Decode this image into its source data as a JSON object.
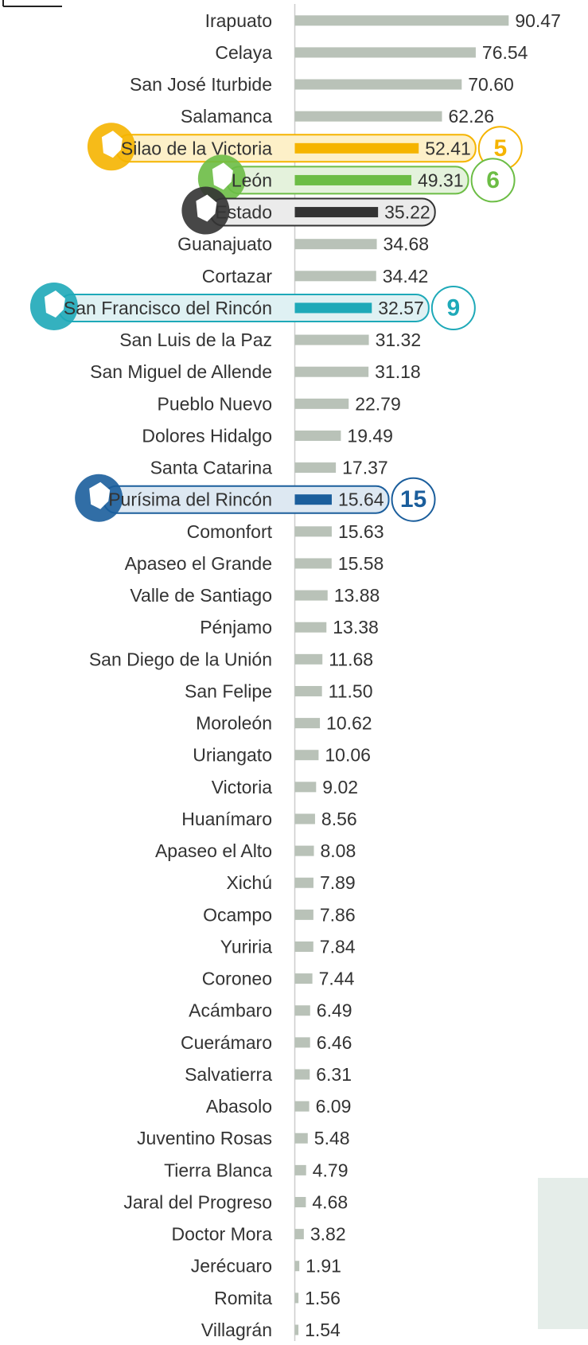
{
  "chart_data": {
    "type": "bar",
    "orientation": "horizontal",
    "color": "#b9c2b8",
    "categories": [
      "Irapuato",
      "Celaya",
      "San José Iturbide",
      "Salamanca",
      "Silao de la Victoria",
      "León",
      "Estado",
      "Guanajuato",
      "Cortazar",
      "San Francisco del Rincón",
      "San Luis de la Paz",
      "San Miguel de Allende",
      "Pueblo Nuevo",
      "Dolores Hidalgo",
      "Santa Catarina",
      "Purísima del Rincón",
      "Comonfort",
      "Apaseo el Grande",
      "Valle de Santiago",
      "Pénjamo",
      "San Diego de la Unión",
      "San Felipe",
      "Moroleón",
      "Uriangato",
      "Victoria",
      "Huanímaro",
      "Apaseo el Alto",
      "Xichú",
      "Ocampo",
      "Yuriria",
      "Coroneo",
      "Acámbaro",
      "Cuerámaro",
      "Salvatierra",
      "Abasolo",
      "Juventino Rosas",
      "Tierra Blanca",
      "Jaral del Progreso",
      "Doctor Mora",
      "Jerécuaro",
      "Romita",
      "Villagrán"
    ],
    "values": [
      90.47,
      76.54,
      70.6,
      62.26,
      52.41,
      49.31,
      35.22,
      34.68,
      34.42,
      32.57,
      31.32,
      31.18,
      22.79,
      19.49,
      17.37,
      15.64,
      15.63,
      15.58,
      13.88,
      13.38,
      11.68,
      11.5,
      10.62,
      10.06,
      9.02,
      8.56,
      8.08,
      7.89,
      7.86,
      7.84,
      7.44,
      6.49,
      6.46,
      6.31,
      6.09,
      5.48,
      4.79,
      4.68,
      3.82,
      1.91,
      1.56,
      1.54
    ],
    "value_labels": [
      "90.47",
      "76.54",
      "70.60",
      "62.26",
      "52.41",
      "49.31",
      "35.22",
      "34.68",
      "34.42",
      "32.57",
      "31.32",
      "31.18",
      "22.79",
      "19.49",
      "17.37",
      "15.64",
      "15.63",
      "15.58",
      "13.88",
      "13.38",
      "11.68",
      "11.50",
      "10.62",
      "10.06",
      "9.02",
      "8.56",
      "8.08",
      "7.89",
      "7.86",
      "7.84",
      "7.44",
      "6.49",
      "6.46",
      "6.31",
      "6.09",
      "5.48",
      "4.79",
      "4.68",
      "3.82",
      "1.91",
      "1.56",
      "1.54"
    ],
    "xlim": [
      0,
      100
    ],
    "highlights": [
      {
        "category": "Silao de la Victoria",
        "color": "#f5b400",
        "fill": "#fdf0c8",
        "rank": "5"
      },
      {
        "category": "León",
        "color": "#6cbd45",
        "fill": "#e4f2dc",
        "rank": "6"
      },
      {
        "category": "Estado",
        "color": "#333333",
        "fill": "#ebebeb"
      },
      {
        "category": "San Francisco del Rincón",
        "color": "#1ea9b8",
        "fill": "#dff1f3",
        "rank": "9"
      },
      {
        "category": "Purísima del Rincón",
        "color": "#1b5e9c",
        "fill": "#dde8f2",
        "rank": "15"
      }
    ]
  }
}
